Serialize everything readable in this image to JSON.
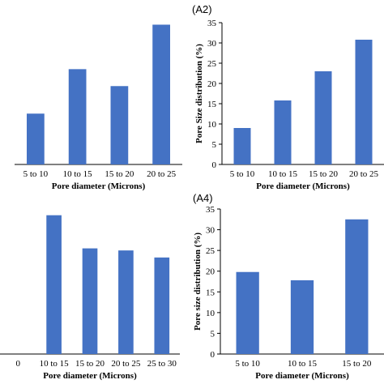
{
  "colors": {
    "bar": "#4472C4",
    "axis": "#000000",
    "text": "#000000"
  },
  "chart_data": [
    {
      "type": "bar",
      "panel_label": "",
      "title": "",
      "xlabel": "Pore diameter (Microns)",
      "ylabel": "",
      "categories": [
        "5 to 10",
        "10 to 15",
        "15 to 20",
        "20 to 25"
      ],
      "values": [
        12,
        22.5,
        18.5,
        33
      ],
      "ylim": [
        0,
        35
      ],
      "yticks": [],
      "grid": false,
      "legend": "none"
    },
    {
      "type": "bar",
      "panel_label": "(A2)",
      "title": "",
      "xlabel": "Pore diameter (Microns)",
      "ylabel": "Pore Size distribution (%)",
      "categories": [
        "5 to 10",
        "10 to 15",
        "15 to 20",
        "20 to 25"
      ],
      "values": [
        9,
        15.8,
        23,
        30.8
      ],
      "ylim": [
        0,
        35
      ],
      "yticks": [
        0,
        5,
        10,
        15,
        20,
        25,
        30,
        35
      ],
      "grid": false,
      "legend": "none"
    },
    {
      "type": "bar",
      "panel_label": "",
      "title": "",
      "xlabel": "Pore diameter (Microns)",
      "ylabel": "",
      "categories": [
        "0",
        "10 to 15",
        "15 to 20",
        "20 to 25",
        "25 to 30"
      ],
      "values": [
        0,
        33.5,
        25.5,
        25,
        23.3
      ],
      "ylim": [
        0,
        35
      ],
      "yticks": [],
      "grid": false,
      "legend": "none"
    },
    {
      "type": "bar",
      "panel_label": "(A4)",
      "title": "",
      "xlabel": "Pore diameter (Microns)",
      "ylabel": "Pore size distribution (%)",
      "categories": [
        "5 to 10",
        "10 to 15",
        "15 to 20"
      ],
      "values": [
        19.8,
        17.8,
        32.5
      ],
      "ylim": [
        0,
        35
      ],
      "yticks": [
        0,
        5,
        10,
        15,
        20,
        25,
        30,
        35
      ],
      "grid": false,
      "legend": "none"
    }
  ]
}
